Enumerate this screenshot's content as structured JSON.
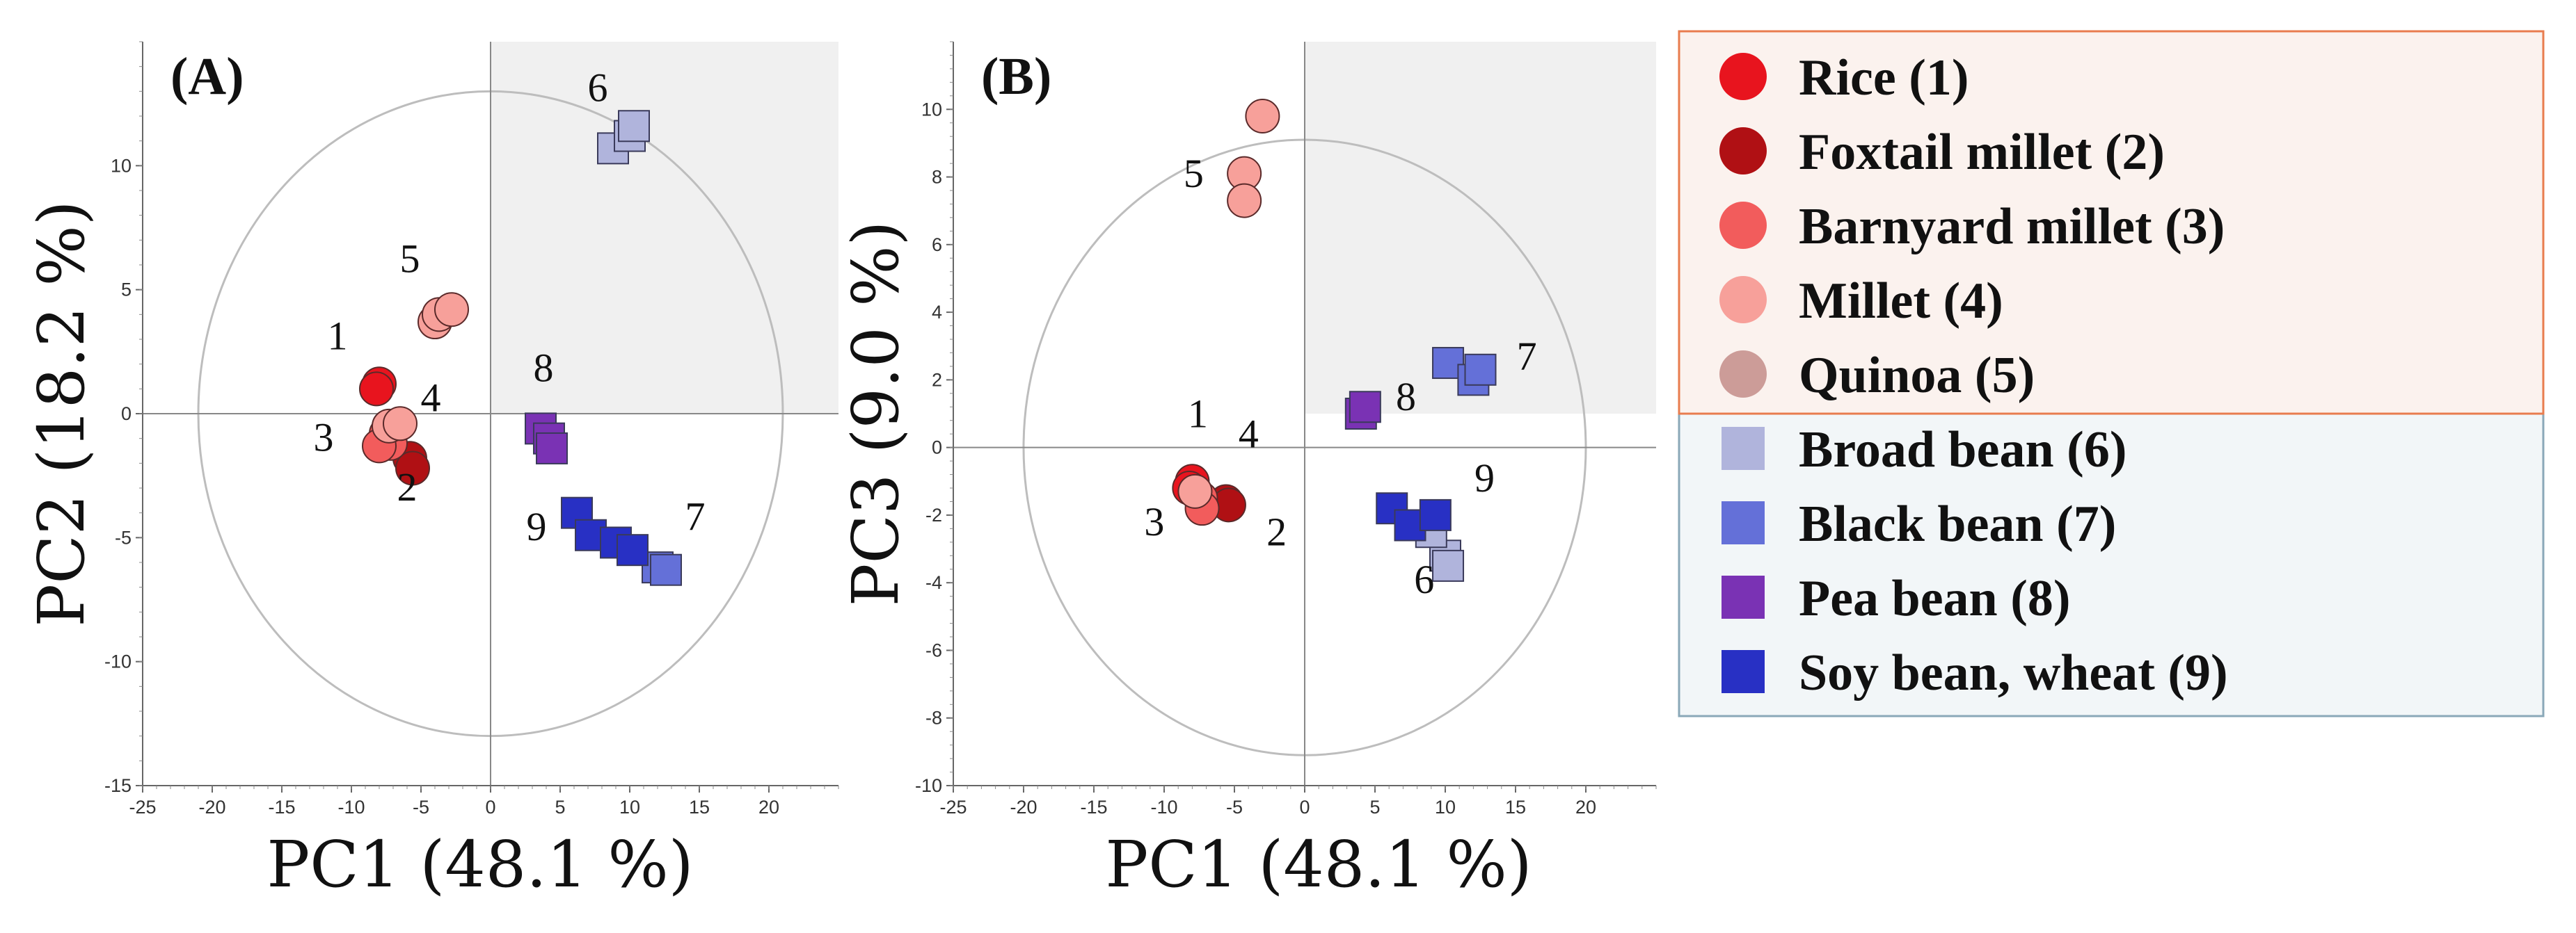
{
  "legend": {
    "title": "",
    "border_color_cereals": "#e87c4e",
    "border_color_legumes": "#8aa8b8",
    "bg_cereals": "#fbf2ee",
    "bg_legumes": "#f2f6f8",
    "entries": [
      {
        "label": "Rice (1)",
        "shape": "circle",
        "color": "#e8141e"
      },
      {
        "label": "Foxtail millet (2)",
        "shape": "circle",
        "color": "#b01014"
      },
      {
        "label": "Barnyard millet (3)",
        "shape": "circle",
        "color": "#f25c5c"
      },
      {
        "label": "Millet (4)",
        "shape": "circle",
        "color": "#f7a09a"
      },
      {
        "label": "Quinoa (5)",
        "shape": "circle",
        "color": "#cc9c98"
      },
      {
        "label": "Broad bean (6)",
        "shape": "square",
        "color": "#b0b4dc"
      },
      {
        "label": "Black bean (7)",
        "shape": "square",
        "color": "#6470d8"
      },
      {
        "label": "Pea bean (8)",
        "shape": "square",
        "color": "#7a32b4"
      },
      {
        "label": "Soy bean, wheat (9)",
        "shape": "square",
        "color": "#2830c4"
      }
    ]
  },
  "chart_data": [
    {
      "type": "scatter",
      "panel": "(A)",
      "xlabel": "PC1 (48.1 %)",
      "ylabel": "PC2 (18.2 %)",
      "xlim": [
        -25,
        25
      ],
      "ylim": [
        -15,
        15
      ],
      "xticks": [
        -25,
        -20,
        -15,
        -10,
        -5,
        0,
        5,
        10,
        15,
        20
      ],
      "yticks": [
        -15,
        -10,
        -5,
        0,
        5,
        10
      ],
      "ellipse": {
        "rx": 21,
        "ry": 13
      },
      "series": [
        {
          "name": "Rice (1)",
          "shape": "circle",
          "color": "#e8141e",
          "points": [
            [
              -8,
              1.2
            ],
            [
              -8.2,
              1.0
            ]
          ]
        },
        {
          "name": "Foxtail millet (2)",
          "shape": "circle",
          "color": "#b01014",
          "points": [
            [
              -5.8,
              -1.8
            ],
            [
              -5.6,
              -2.2
            ]
          ]
        },
        {
          "name": "Barnyard millet (3)",
          "shape": "circle",
          "color": "#f25c5c",
          "points": [
            [
              -7.5,
              -0.8
            ],
            [
              -7.2,
              -1.2
            ],
            [
              -8,
              -1.3
            ]
          ]
        },
        {
          "name": "Millet (4)",
          "shape": "circle",
          "color": "#f7a09a",
          "points": [
            [
              -7.3,
              -0.5
            ],
            [
              -6.5,
              -0.4
            ]
          ]
        },
        {
          "name": "Quinoa (5)",
          "shape": "circle",
          "color": "#f7a09a",
          "points": [
            [
              -4,
              3.7
            ],
            [
              -3.7,
              4.0
            ],
            [
              -2.8,
              4.2
            ]
          ]
        },
        {
          "name": "Broad bean (6)",
          "shape": "square",
          "color": "#b0b4dc",
          "points": [
            [
              8.8,
              10.7
            ],
            [
              10,
              11.2
            ],
            [
              10.3,
              11.6
            ]
          ]
        },
        {
          "name": "Black bean (7)",
          "shape": "square",
          "color": "#6470d8",
          "points": [
            [
              12,
              -6.2
            ],
            [
              12.6,
              -6.3
            ]
          ]
        },
        {
          "name": "Pea bean (8)",
          "shape": "square",
          "color": "#7a32b4",
          "points": [
            [
              3.6,
              -0.6
            ],
            [
              4.2,
              -1.0
            ],
            [
              4.4,
              -1.4
            ]
          ]
        },
        {
          "name": "Soy bean, wheat (9)",
          "shape": "square",
          "color": "#2830c4",
          "points": [
            [
              6.2,
              -4.0
            ],
            [
              7.2,
              -4.9
            ],
            [
              9.0,
              -5.2
            ],
            [
              10.2,
              -5.5
            ]
          ]
        }
      ],
      "annotations": [
        {
          "text": "1",
          "x": -11,
          "y": 2.6
        },
        {
          "text": "2",
          "x": -6,
          "y": -3.5
        },
        {
          "text": "3",
          "x": -12,
          "y": -1.5
        },
        {
          "text": "4",
          "x": -4.3,
          "y": 0.1
        },
        {
          "text": "5",
          "x": -5.8,
          "y": 5.7
        },
        {
          "text": "6",
          "x": 7.7,
          "y": 12.6
        },
        {
          "text": "7",
          "x": 14.7,
          "y": -4.7
        },
        {
          "text": "8",
          "x": 3.8,
          "y": 1.3
        },
        {
          "text": "9",
          "x": 3.3,
          "y": -5.1
        }
      ]
    },
    {
      "type": "scatter",
      "panel": "(B)",
      "xlabel": "PC1 (48.1 %)",
      "ylabel": "PC3 (9.0 %)",
      "xlim": [
        -25,
        25
      ],
      "ylim": [
        -10,
        12
      ],
      "xticks": [
        -25,
        -20,
        -15,
        -10,
        -5,
        0,
        5,
        10,
        15,
        20
      ],
      "yticks": [
        -10,
        -8,
        -6,
        -4,
        -2,
        0,
        2,
        4,
        6,
        8,
        10
      ],
      "ellipse": {
        "rx": 20,
        "ry": 9.1
      },
      "series": [
        {
          "name": "Rice (1)",
          "shape": "circle",
          "color": "#e8141e",
          "points": [
            [
              -8,
              -1.0
            ],
            [
              -8.2,
              -1.2
            ]
          ]
        },
        {
          "name": "Foxtail millet (2)",
          "shape": "circle",
          "color": "#b01014",
          "points": [
            [
              -5.6,
              -1.6
            ],
            [
              -5.4,
              -1.7
            ]
          ]
        },
        {
          "name": "Barnyard millet (3)",
          "shape": "circle",
          "color": "#f25c5c",
          "points": [
            [
              -7.4,
              -1.5
            ],
            [
              -7.3,
              -1.8
            ]
          ]
        },
        {
          "name": "Millet (4)",
          "shape": "circle",
          "color": "#f7a09a",
          "points": [
            [
              -7.8,
              -1.3
            ]
          ]
        },
        {
          "name": "Quinoa (5)",
          "shape": "circle",
          "color": "#f7a09a",
          "points": [
            [
              -4.3,
              8.1
            ],
            [
              -4.3,
              7.3
            ],
            [
              -3.0,
              9.8
            ]
          ]
        },
        {
          "name": "Broad bean (6)",
          "shape": "square",
          "color": "#b0b4dc",
          "points": [
            [
              10,
              -3.2
            ],
            [
              10.2,
              -3.5
            ],
            [
              9.0,
              -2.5
            ]
          ]
        },
        {
          "name": "Black bean (7)",
          "shape": "square",
          "color": "#6470d8",
          "points": [
            [
              10.2,
              2.5
            ],
            [
              12.0,
              2.0
            ],
            [
              12.5,
              2.3
            ]
          ]
        },
        {
          "name": "Pea bean (8)",
          "shape": "square",
          "color": "#7a32b4",
          "points": [
            [
              4.0,
              1.0
            ],
            [
              4.3,
              1.2
            ]
          ]
        },
        {
          "name": "Soy bean, wheat (9)",
          "shape": "square",
          "color": "#2830c4",
          "points": [
            [
              6.2,
              -1.8
            ],
            [
              7.5,
              -2.3
            ],
            [
              9.3,
              -2.0
            ]
          ]
        }
      ],
      "annotations": [
        {
          "text": "1",
          "x": -7.6,
          "y": 0.6
        },
        {
          "text": "2",
          "x": -2,
          "y": -2.9
        },
        {
          "text": "3",
          "x": -10.7,
          "y": -2.6
        },
        {
          "text": "4",
          "x": -4.0,
          "y": 0.0
        },
        {
          "text": "5",
          "x": -7.9,
          "y": 7.7
        },
        {
          "text": "6",
          "x": 8.5,
          "y": -4.3
        },
        {
          "text": "7",
          "x": 15.8,
          "y": 2.3
        },
        {
          "text": "8",
          "x": 7.2,
          "y": 1.1
        },
        {
          "text": "9",
          "x": 12.8,
          "y": -1.3
        }
      ]
    }
  ]
}
